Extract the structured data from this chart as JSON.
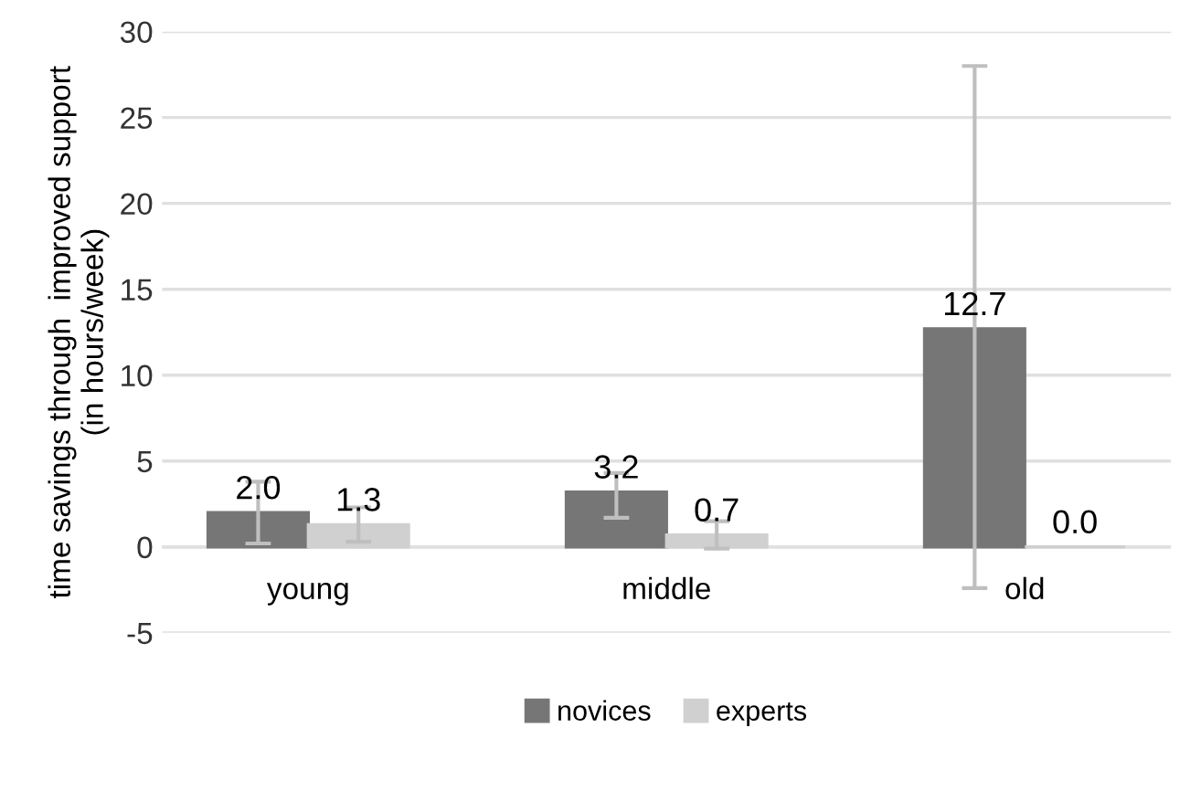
{
  "chart_data": {
    "type": "bar",
    "ylabel": "time savings through  improved support\n(in hours/week)",
    "categories": [
      "young",
      "middle",
      "old"
    ],
    "series": [
      {
        "name": "novices",
        "color": "#767676",
        "values": [
          2.0,
          3.2,
          12.7
        ],
        "value_labels": [
          "2.0",
          "3.2",
          "12.7"
        ],
        "errors": [
          [
            0.2,
            3.8
          ],
          [
            1.7,
            4.3
          ],
          [
            -2.4,
            28.0
          ]
        ]
      },
      {
        "name": "experts",
        "color": "#d0d0d0",
        "values": [
          1.3,
          0.7,
          0.0
        ],
        "value_labels": [
          "1.3",
          "0.7",
          "0.0"
        ],
        "errors": [
          1.0,
          0.8,
          null
        ]
      }
    ],
    "ylim": [
      -5,
      30
    ],
    "yticks": [
      {
        "value": -5,
        "label": "-5"
      },
      0,
      5,
      10,
      15,
      20,
      25,
      30
    ],
    "grid": "y",
    "legend": "bottom"
  }
}
